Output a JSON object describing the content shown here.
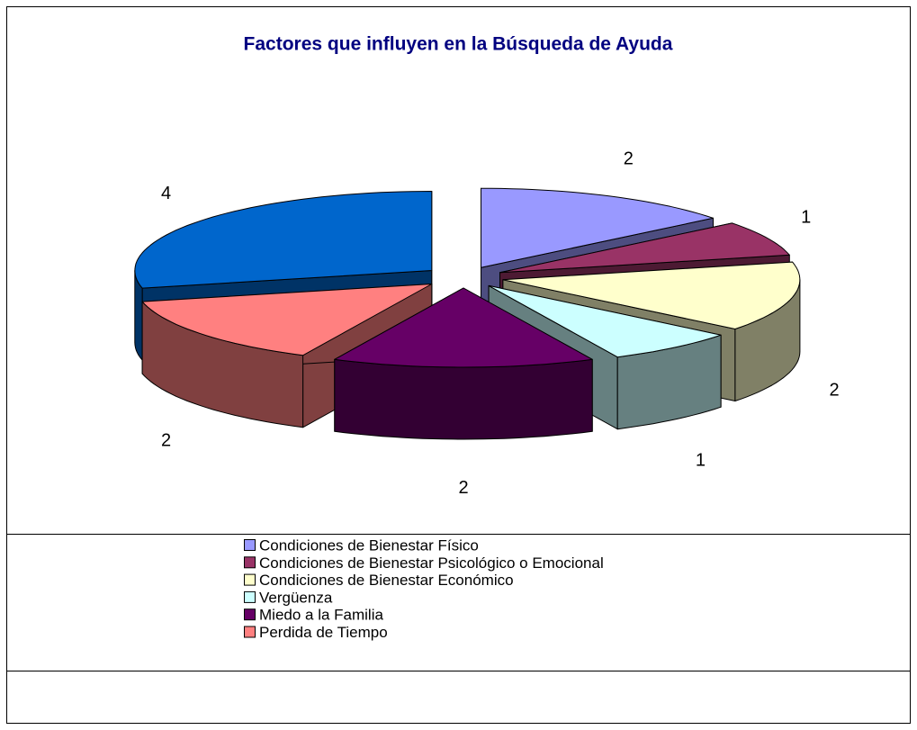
{
  "chart_data": {
    "type": "pie3d",
    "title": "Factores que influyen en la Búsqueda de Ayuda",
    "categories": [
      "Condiciones de Bienestar Físico",
      "Condiciones de Bienestar Psicológico o Emocional",
      "Condiciones de Bienestar Económico",
      "Vergüenza",
      "Miedo a la Familia",
      "Perdida de Tiempo",
      null
    ],
    "values": [
      2,
      1,
      2,
      1,
      2,
      2,
      4
    ],
    "colors": [
      "#9999ff",
      "#993366",
      "#ffffcc",
      "#ccffff",
      "#660066",
      "#ff8080",
      "#0066cc"
    ]
  }
}
